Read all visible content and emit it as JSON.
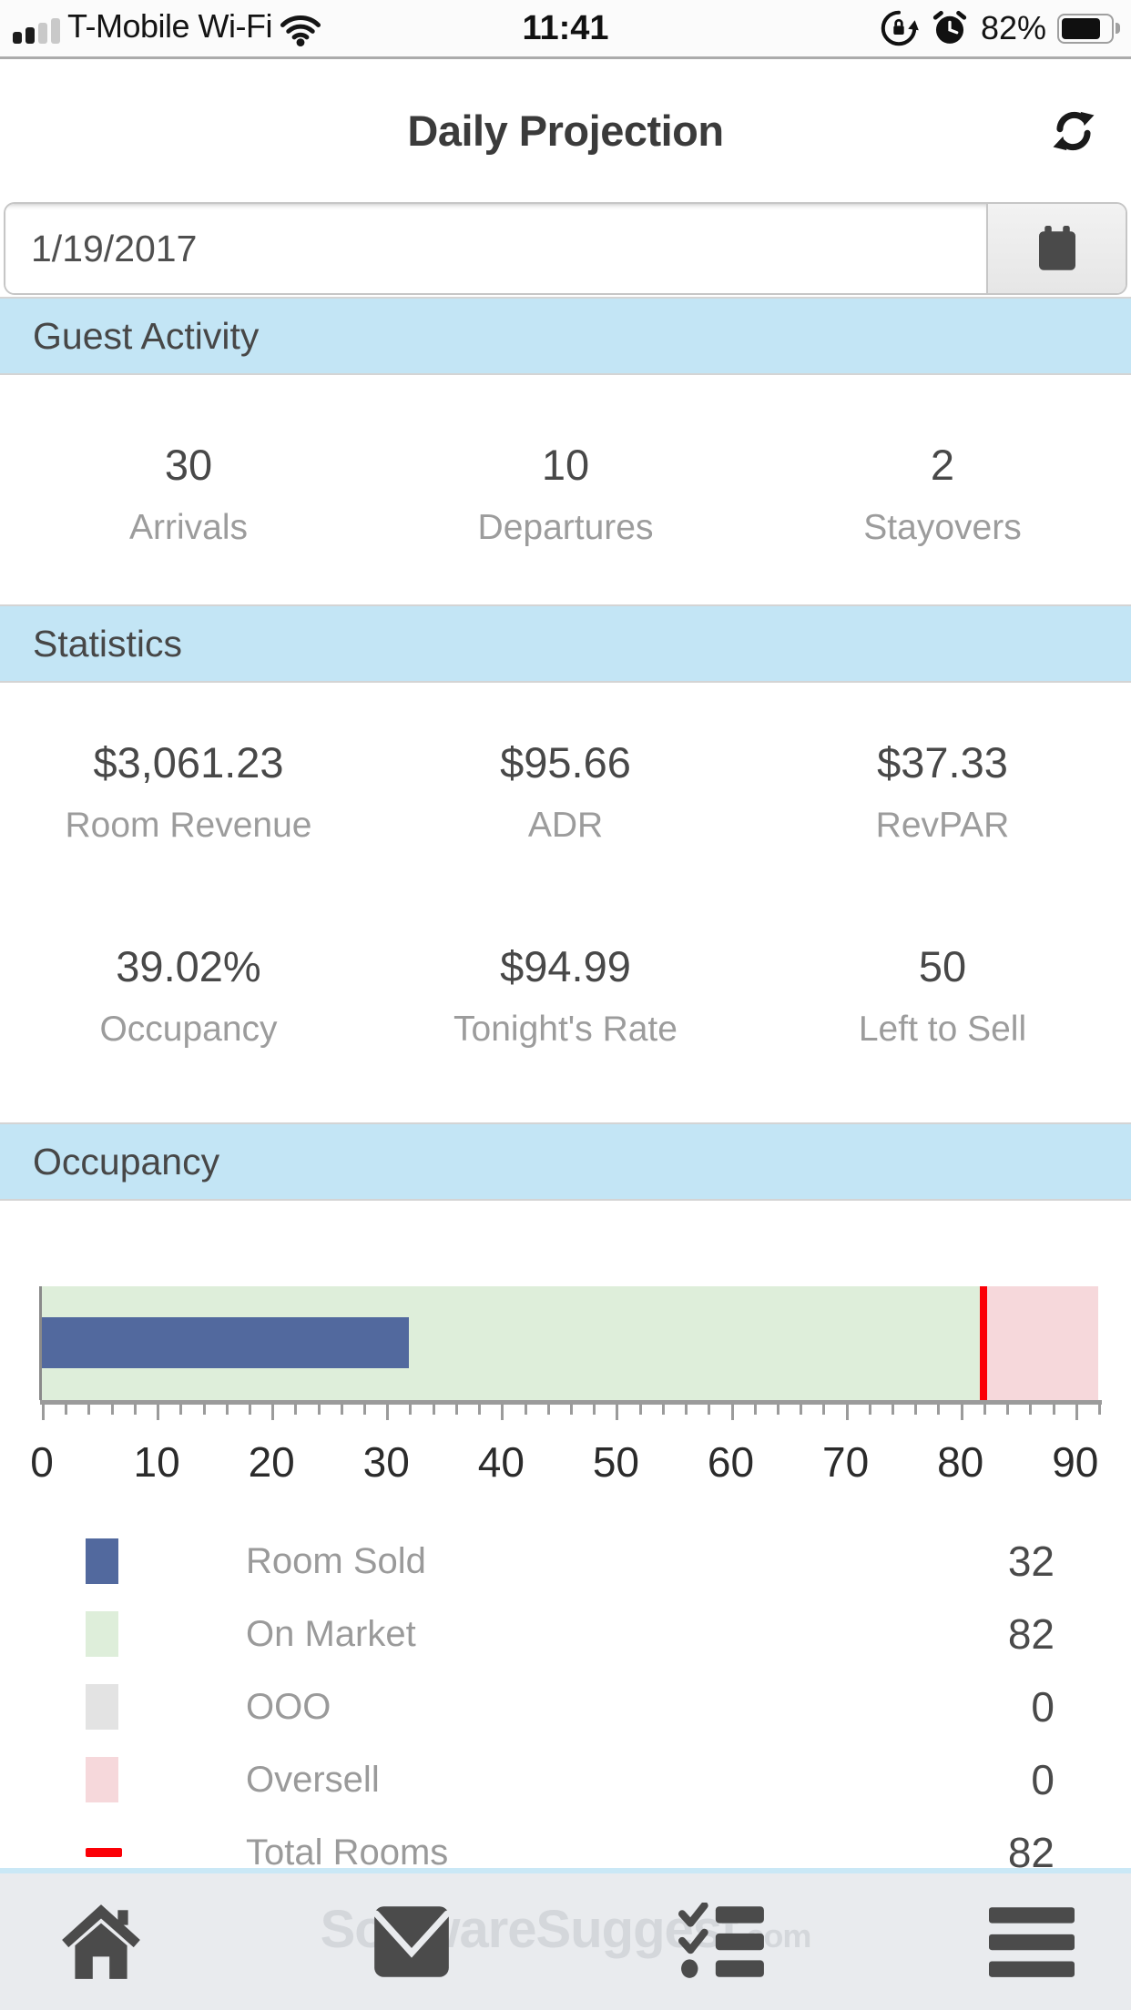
{
  "status_bar": {
    "carrier": "T-Mobile Wi-Fi",
    "time": "11:41",
    "battery": "82%"
  },
  "header": {
    "title": "Daily Projection"
  },
  "date_picker": {
    "value": "1/19/2017"
  },
  "guest_activity": {
    "title": "Guest Activity",
    "stats": [
      {
        "value": "30",
        "label": "Arrivals"
      },
      {
        "value": "10",
        "label": "Departures"
      },
      {
        "value": "2",
        "label": "Stayovers"
      }
    ]
  },
  "statistics": {
    "title": "Statistics",
    "stats": [
      {
        "value": "$3,061.23",
        "label": "Room Revenue"
      },
      {
        "value": "$95.66",
        "label": "ADR"
      },
      {
        "value": "$37.33",
        "label": "RevPAR"
      },
      {
        "value": "39.02%",
        "label": "Occupancy"
      },
      {
        "value": "$94.99",
        "label": "Tonight's Rate"
      },
      {
        "value": "50",
        "label": "Left to Sell"
      }
    ]
  },
  "occupancy_section": {
    "title": "Occupancy"
  },
  "chart_data": {
    "type": "bar",
    "orientation": "horizontal",
    "title": "Occupancy",
    "xlim": [
      0,
      92
    ],
    "x_ticks": [
      0,
      10,
      20,
      30,
      40,
      50,
      60,
      70,
      80,
      90
    ],
    "minor_tick_step": 2,
    "grid": false,
    "legend_position": "below",
    "series": [
      {
        "name": "Room Sold",
        "value": 32,
        "color": "#52699e",
        "render": "bar",
        "swatch": "square"
      },
      {
        "name": "On Market",
        "value": 82,
        "color": "#deeeda",
        "render": "background",
        "swatch": "square"
      },
      {
        "name": "OOO",
        "value": 0,
        "color": "#e3e3e3",
        "render": "background",
        "swatch": "square"
      },
      {
        "name": "Oversell",
        "value": 0,
        "color": "#f6d8db",
        "render": "overflow",
        "swatch": "square"
      },
      {
        "name": "Total Rooms",
        "value": 82,
        "color": "#fb0007",
        "render": "line",
        "swatch": "dash"
      }
    ]
  },
  "bottom_nav": {
    "watermark": "SoftwareSuggest",
    "watermark_suffix": ".com",
    "items": [
      "home",
      "mail",
      "checklist",
      "menu"
    ]
  },
  "colors": {
    "section_header_bg": "#c3e5f5",
    "accent_blue": "#52699e",
    "nav_bg": "#e9ebee",
    "axis_gray": "#9b9b9b"
  }
}
